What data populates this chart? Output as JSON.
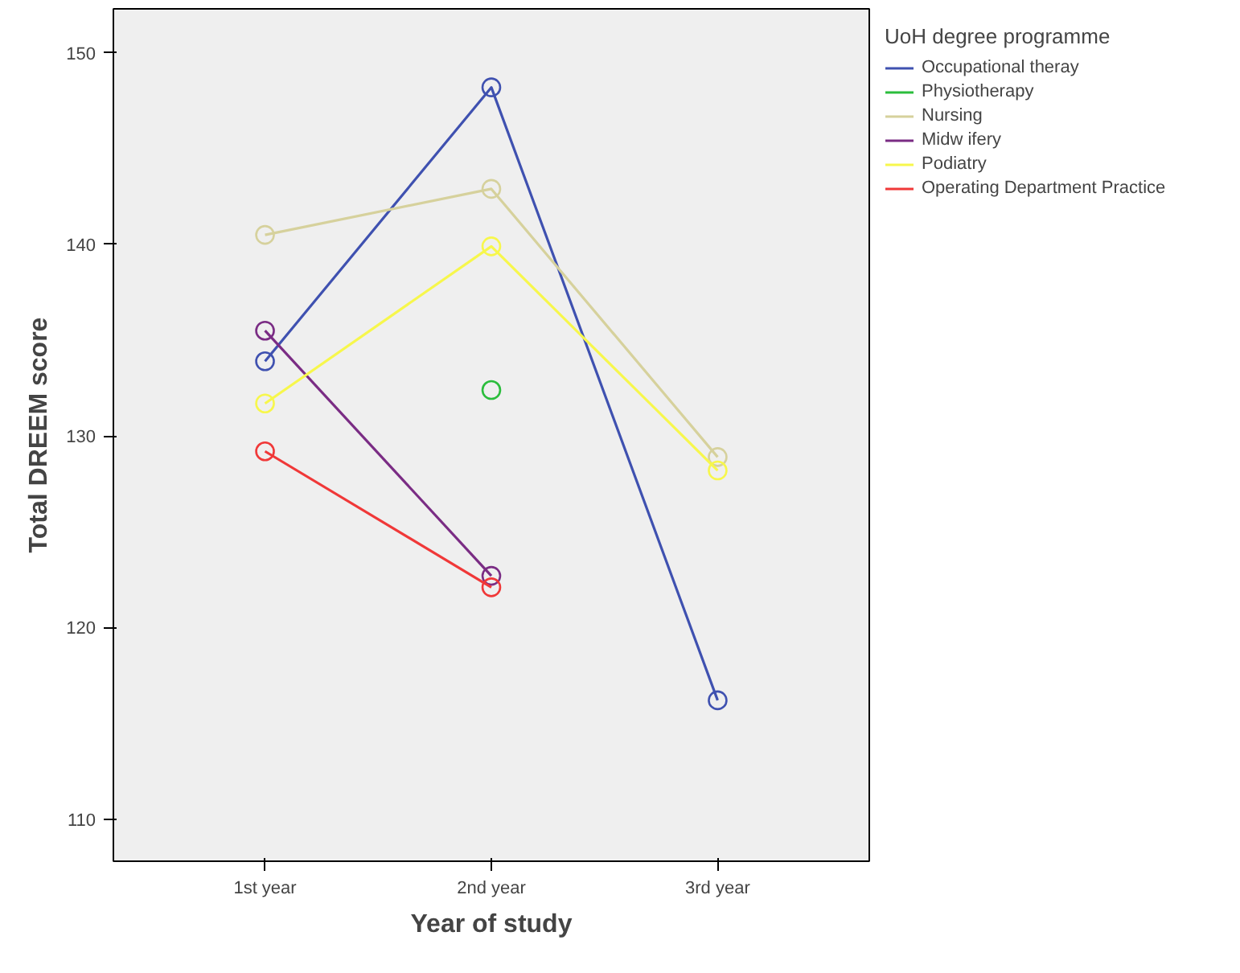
{
  "chart_data": {
    "type": "line",
    "xlabel": "Year of study",
    "ylabel": "Total DREEM score",
    "legend_title": "UoH degree programme",
    "categories": [
      "1st year",
      "2nd year",
      "3rd year"
    ],
    "series": [
      {
        "name": "Occupational theray",
        "color": "#3f51b0",
        "values": [
          133.9,
          148.2,
          116.2
        ]
      },
      {
        "name": "Physiotherapy",
        "color": "#2bbd3c",
        "values": [
          null,
          132.4,
          null
        ]
      },
      {
        "name": "Nursing",
        "color": "#d6d19c",
        "values": [
          140.5,
          142.9,
          128.9
        ]
      },
      {
        "name": "Midw ifery",
        "color": "#7a2c84",
        "values": [
          135.5,
          122.7,
          null
        ]
      },
      {
        "name": "Podiatry",
        "color": "#f7f74c",
        "values": [
          131.7,
          139.9,
          128.2
        ]
      },
      {
        "name": "Operating Department Practice",
        "color": "#f03838",
        "values": [
          129.2,
          122.1,
          null
        ]
      }
    ],
    "ylim": [
      107.8,
      152.3
    ],
    "yticks": [
      110,
      120,
      130,
      140,
      150
    ],
    "grid": false,
    "legend": "right",
    "marker": "circle",
    "line_style": "solid"
  }
}
